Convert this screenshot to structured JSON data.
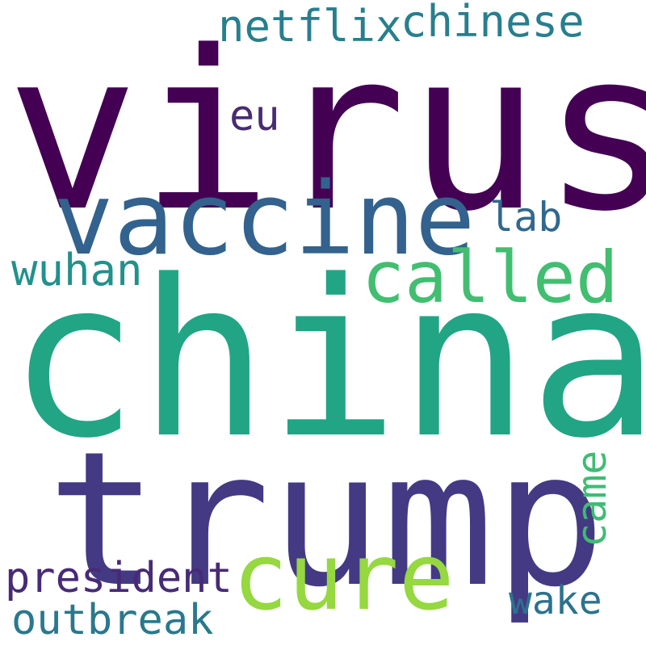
{
  "words": {
    "virus": {
      "text": "virus",
      "color": "#440154"
    },
    "china": {
      "text": "china",
      "color": "#21a585"
    },
    "trump": {
      "text": "trump",
      "color": "#443a83"
    },
    "vaccine": {
      "text": "vaccine",
      "color": "#32628d"
    },
    "called": {
      "text": "called",
      "color": "#42be71"
    },
    "cure": {
      "text": "cure",
      "color": "#95d840"
    },
    "netflix": {
      "text": "netflix",
      "color": "#277f8e"
    },
    "chinese": {
      "text": "chinese",
      "color": "#277f8e"
    },
    "eu": {
      "text": "eu",
      "color": "#482c72"
    },
    "lab": {
      "text": "lab",
      "color": "#31688e"
    },
    "wuhan": {
      "text": "wuhan",
      "color": "#21918c"
    },
    "president": {
      "text": "president",
      "color": "#482a76"
    },
    "outbreak": {
      "text": "outbreak",
      "color": "#2a788e"
    },
    "wake": {
      "text": "wake",
      "color": "#2c728e"
    },
    "came": {
      "text": "came",
      "color": "#3fbc73"
    }
  }
}
